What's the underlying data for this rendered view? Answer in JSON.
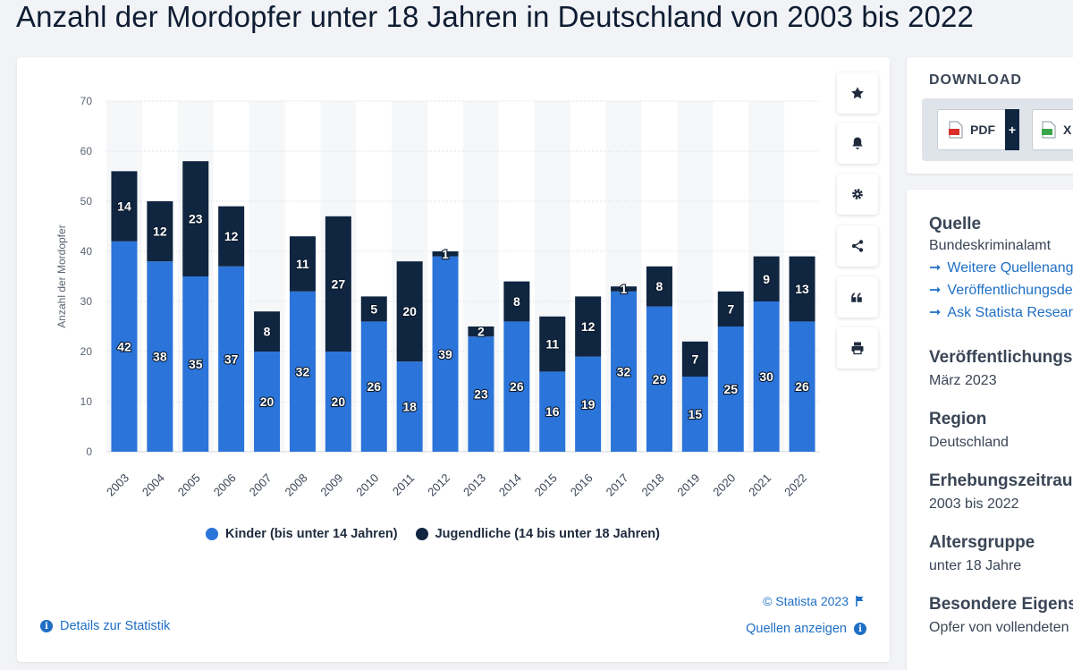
{
  "title": "Anzahl der Mordopfer unter 18 Jahren in Deutschland von 2003 bis 2022",
  "toolbar": {
    "icons": [
      "star-icon",
      "bell-icon",
      "gear-icon",
      "share-icon",
      "quote-icon",
      "print-icon"
    ]
  },
  "footer": {
    "copyright": "© Statista 2023",
    "details": "Details zur Statistik",
    "sources": "Quellen anzeigen"
  },
  "download": {
    "heading": "DOWNLOAD",
    "pdf_label": "PDF",
    "plus": "+",
    "xls_label": "X"
  },
  "info": {
    "source_label": "Quelle",
    "source_value": "Bundeskriminalamt",
    "links": [
      "Weitere Quellenangaben",
      "Veröffentlichungsdetails",
      "Ask Statista Research Service"
    ],
    "release_label": "Veröffentlichungsdatum",
    "release_value": "März 2023",
    "region_label": "Region",
    "region_value": "Deutschland",
    "period_label": "Erhebungszeitraum",
    "period_value": "2003 bis 2022",
    "age_label": "Altersgruppe",
    "age_value": "unter 18 Jahre",
    "special_label": "Besondere Eigenschaften",
    "special_value": "Opfer von vollendeten Delikten"
  },
  "colors": {
    "kinder": "#2b74d9",
    "jugendliche": "#0f2540"
  },
  "chart_data": {
    "type": "bar",
    "stacked": true,
    "categories": [
      "2003",
      "2004",
      "2005",
      "2006",
      "2007",
      "2008",
      "2009",
      "2010",
      "2011",
      "2012",
      "2013",
      "2014",
      "2015",
      "2016",
      "2017",
      "2018",
      "2019",
      "2020",
      "2021",
      "2022"
    ],
    "series": [
      {
        "name": "Kinder (bis unter 14 Jahren)",
        "values": [
          42,
          38,
          35,
          37,
          20,
          32,
          20,
          26,
          18,
          39,
          23,
          26,
          16,
          19,
          32,
          29,
          15,
          25,
          30,
          26
        ]
      },
      {
        "name": "Jugendliche (14 bis unter 18 Jahren)",
        "values": [
          14,
          12,
          23,
          12,
          8,
          11,
          27,
          5,
          20,
          1,
          2,
          8,
          11,
          12,
          1,
          8,
          7,
          7,
          9,
          13
        ]
      }
    ],
    "ylabel": "Anzahl der Mordopfer",
    "xlabel": "",
    "ylim": [
      0,
      70
    ],
    "yticks": [
      0,
      10,
      20,
      30,
      40,
      50,
      60,
      70
    ],
    "grid": true,
    "legend": "bottom"
  }
}
